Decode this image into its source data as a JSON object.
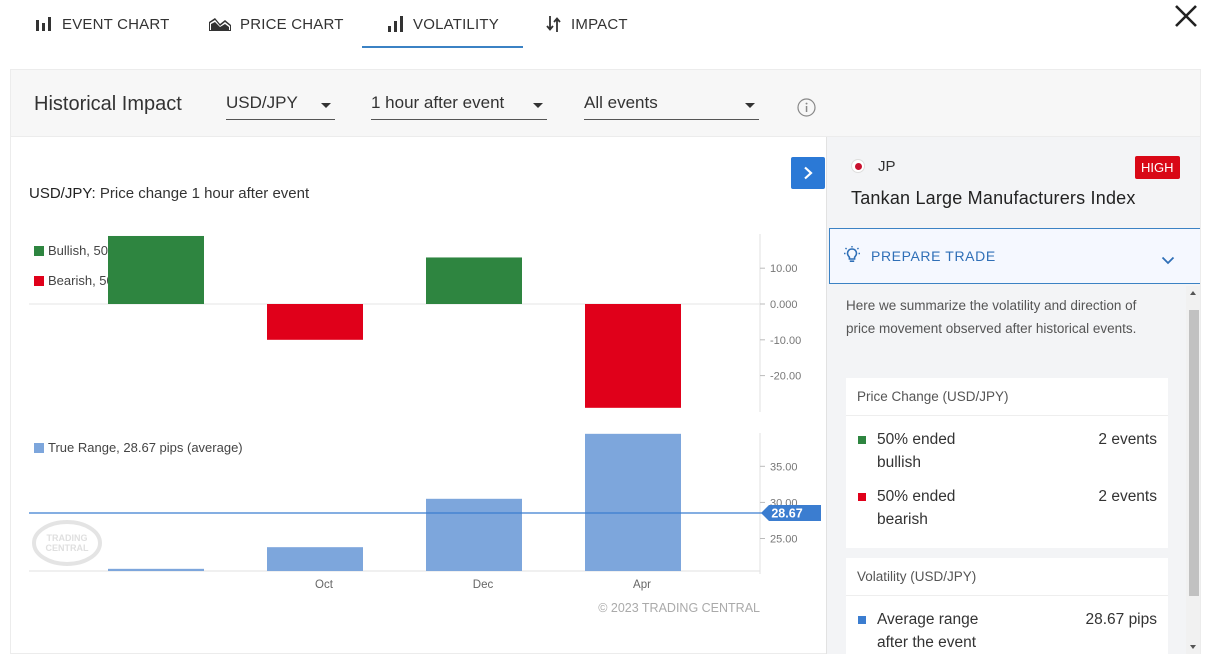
{
  "tabs": [
    {
      "label": "EVENT CHART",
      "icon": "bar-chart-icon"
    },
    {
      "label": "PRICE CHART",
      "icon": "area-chart-icon"
    },
    {
      "label": "VOLATILITY",
      "icon": "volatility-icon",
      "active": true
    },
    {
      "label": "IMPACT",
      "icon": "arrows-updown-icon"
    }
  ],
  "filters": {
    "title": "Historical Impact",
    "symbol": "USD/JPY",
    "timeframe": "1 hour after event",
    "events": "All events"
  },
  "chart": {
    "title_symbol": "USD/JPY:",
    "title_rest": " Price change 1 hour after event",
    "legend_bullish": "Bullish, 50%",
    "legend_bearish": "Bearish, 50%",
    "legend_range": "True Range, 28.67 pips (average)",
    "average_label": "28.67",
    "watermark_line1": "TRADING",
    "watermark_line2": "CENTRAL",
    "copyright": "© 2023 TRADING CENTRAL",
    "colors": {
      "bullish": "#2e8540",
      "bearish": "#e0001a",
      "range": "#7da6dc",
      "average": "#3b7dd0"
    }
  },
  "chart_data": [
    {
      "type": "bar",
      "title": "USD/JPY: Price change 1 hour after event",
      "categories": [
        "",
        "Oct",
        "Dec",
        "Apr"
      ],
      "series": [
        {
          "name": "Price change",
          "values": [
            19,
            -10,
            13,
            -29
          ]
        }
      ],
      "ylim": [
        -29,
        19
      ],
      "yticks": [
        "10.00",
        "0.000",
        "-10.00",
        "-20.00"
      ]
    },
    {
      "type": "bar",
      "title": "True Range, 28.67 pips (average)",
      "categories": [
        "",
        "Oct",
        "Dec",
        "Apr"
      ],
      "series": [
        {
          "name": "True Range",
          "values": [
            20.8,
            23.8,
            30.5,
            39.5
          ]
        }
      ],
      "average": 28.67,
      "ylim": [
        20.5,
        39.5
      ],
      "yticks": [
        "35.00",
        "30.00",
        "25.00"
      ],
      "xticks": [
        "Oct",
        "Dec",
        "Apr"
      ]
    }
  ],
  "side": {
    "country": "JP",
    "impact": "HIGH",
    "event_name": "Tankan Large Manufacturers Index",
    "prepare_label": "PREPARE TRADE",
    "summary": "Here we summarize the volatility and direction of price movement observed after historical events.",
    "price_card": {
      "title": "Price Change (USD/JPY)",
      "rows": [
        {
          "text": "50% ended bullish",
          "count": "2 events",
          "color": "#2e8540"
        },
        {
          "text": "50% ended bearish",
          "count": "2 events",
          "color": "#e0001a"
        }
      ]
    },
    "vol_card": {
      "title": "Volatility (USD/JPY)",
      "rows": [
        {
          "text": "Average range after the event",
          "count": "28.67 pips",
          "color": "#3b7dd0"
        }
      ]
    }
  }
}
